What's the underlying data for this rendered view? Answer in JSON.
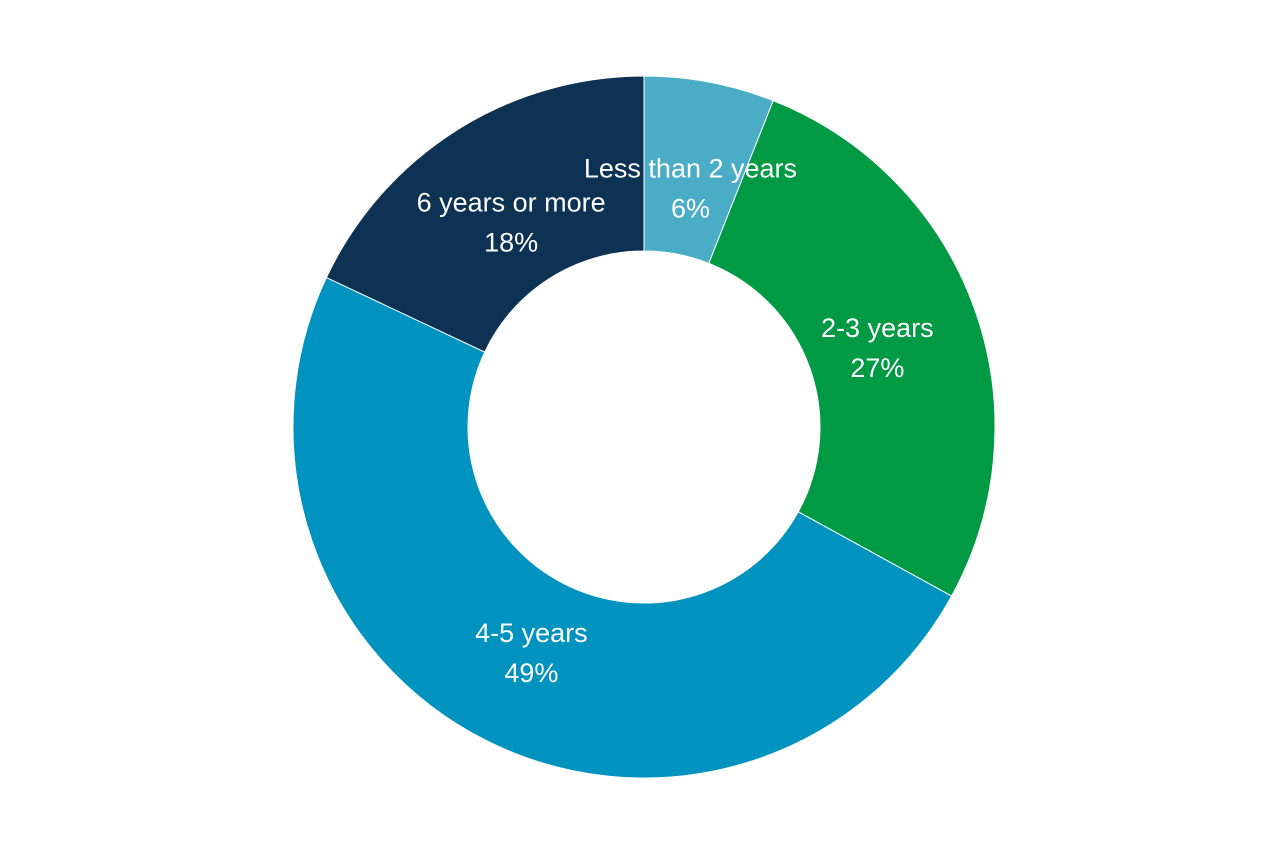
{
  "chart_data": {
    "type": "pie",
    "variant": "donut",
    "title": "",
    "legend": "none",
    "slices": [
      {
        "label": "Less than 2 years",
        "value": 6,
        "value_label": "6%",
        "color": "#4BACC6"
      },
      {
        "label": "2-3 years",
        "value": 27,
        "value_label": "27%",
        "color": "#009A44"
      },
      {
        "label": "4-5 years",
        "value": 49,
        "value_label": "49%",
        "color": "#0093BF"
      },
      {
        "label": "6 years or more",
        "value": 18,
        "value_label": "18%",
        "color": "#0E3254"
      }
    ]
  }
}
